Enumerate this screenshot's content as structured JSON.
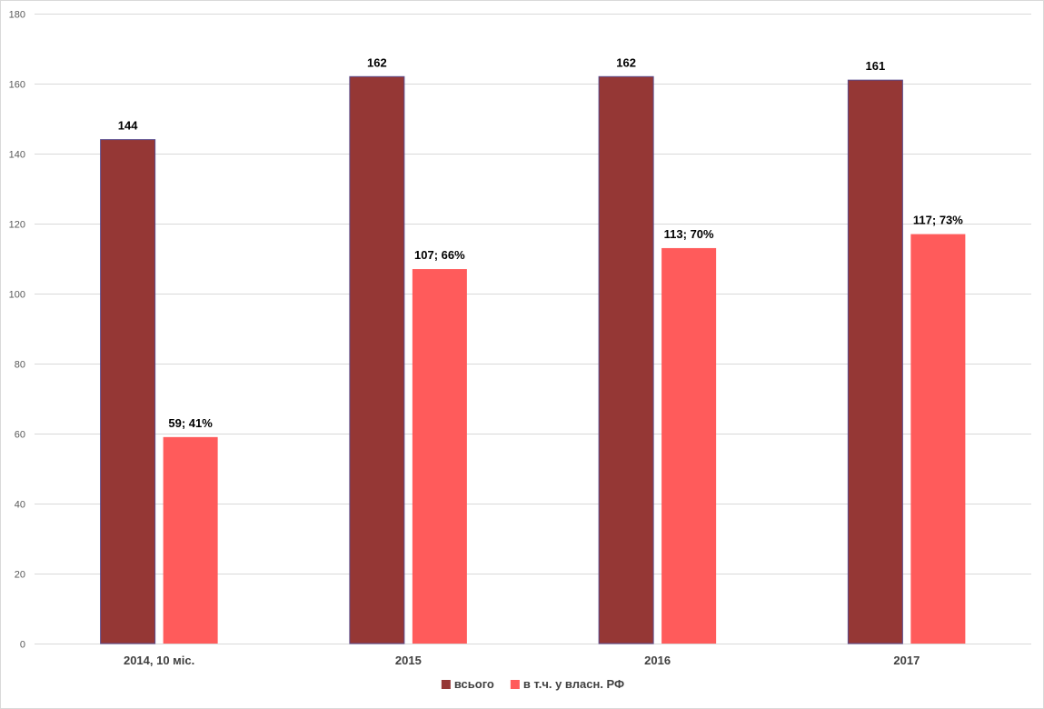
{
  "chart_data": {
    "type": "bar",
    "categories": [
      "2014, 10 міс.",
      "2015",
      "2016",
      "2017"
    ],
    "series": [
      {
        "name": "всього",
        "color": "#953735",
        "values": [
          144,
          162,
          162,
          161
        ],
        "labels": [
          "144",
          "162",
          "162",
          "161"
        ]
      },
      {
        "name": "в т.ч. у власн. РФ",
        "color": "#ff5b5b",
        "values": [
          59,
          107,
          113,
          117
        ],
        "labels": [
          "59; 41%",
          "107; 66%",
          "113; 70%",
          "117; 73%"
        ]
      }
    ],
    "ylim": [
      0,
      180
    ],
    "yticks": [
      0,
      20,
      40,
      60,
      80,
      100,
      120,
      140,
      160,
      180
    ],
    "grid": true,
    "legend": "bottom-center"
  }
}
